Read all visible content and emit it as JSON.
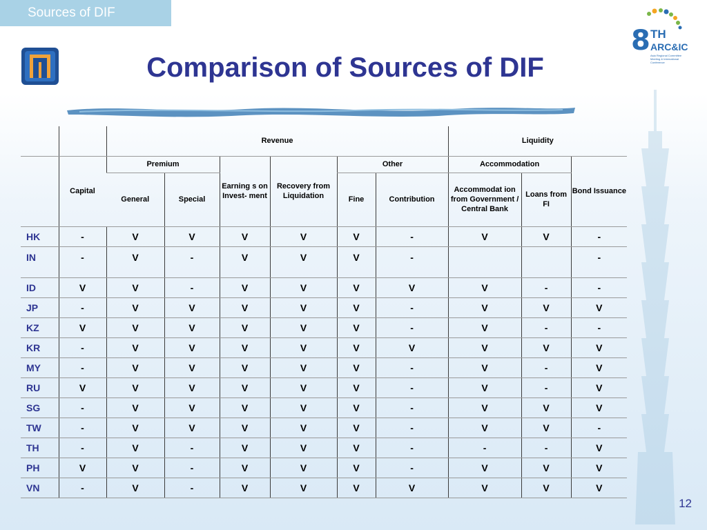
{
  "slide": {
    "tab_label": "Sources of DIF",
    "title": "Comparison of Sources of DIF",
    "page_number": "12",
    "logo_right": {
      "number": "8",
      "suffix": "TH",
      "name": "ARC&IC",
      "caption": "Asia Regional Committee Meeting & International Conference"
    }
  },
  "table": {
    "groups": {
      "revenue": "Revenue",
      "liquidity": "Liquidity"
    },
    "subgroups": {
      "premium": "Premium",
      "other": "Other",
      "accommodation": "Accommodation"
    },
    "columns": {
      "capital": "Capital",
      "general": "General",
      "special": "Special",
      "earnings": "Earning s on Invest- ment",
      "recovery": "Recovery from Liquidation",
      "fine": "Fine",
      "contribution": "Contribution",
      "accommodation_gov": "Accommodat ion from Government / Central Bank",
      "loans_fi": "Loans from FI",
      "bond": "Bond Issuance"
    },
    "rows": [
      {
        "country": "HK",
        "cells": [
          "-",
          "V",
          "V",
          "V",
          "V",
          "V",
          "-",
          "V",
          "V",
          "-"
        ]
      },
      {
        "country": "IN",
        "cells": [
          "-",
          "V",
          "-",
          "V",
          "V",
          "V",
          "-",
          "",
          "",
          "-"
        ]
      },
      {
        "country": "ID",
        "cells": [
          "V",
          "V",
          "-",
          "V",
          "V",
          "V",
          "V",
          "V",
          "-",
          "-"
        ]
      },
      {
        "country": "JP",
        "cells": [
          "-",
          "V",
          "V",
          "V",
          "V",
          "V",
          "-",
          "V",
          "V",
          "V"
        ]
      },
      {
        "country": "KZ",
        "cells": [
          "V",
          "V",
          "V",
          "V",
          "V",
          "V",
          "-",
          "V",
          "-",
          "-"
        ]
      },
      {
        "country": "KR",
        "cells": [
          "-",
          "V",
          "V",
          "V",
          "V",
          "V",
          "V",
          "V",
          "V",
          "V"
        ]
      },
      {
        "country": "MY",
        "cells": [
          "-",
          "V",
          "V",
          "V",
          "V",
          "V",
          "-",
          "V",
          "-",
          "V"
        ]
      },
      {
        "country": "RU",
        "cells": [
          "V",
          "V",
          "V",
          "V",
          "V",
          "V",
          "-",
          "V",
          "-",
          "V"
        ]
      },
      {
        "country": "SG",
        "cells": [
          "-",
          "V",
          "V",
          "V",
          "V",
          "V",
          "-",
          "V",
          "V",
          "V"
        ]
      },
      {
        "country": "TW",
        "cells": [
          "-",
          "V",
          "V",
          "V",
          "V",
          "V",
          "-",
          "V",
          "V",
          "-"
        ]
      },
      {
        "country": "TH",
        "cells": [
          "-",
          "V",
          "-",
          "V",
          "V",
          "V",
          "-",
          "-",
          "-",
          "V"
        ]
      },
      {
        "country": "PH",
        "cells": [
          "V",
          "V",
          "-",
          "V",
          "V",
          "V",
          "-",
          "V",
          "V",
          "V"
        ]
      },
      {
        "country": "VN",
        "cells": [
          "-",
          "V",
          "-",
          "V",
          "V",
          "V",
          "V",
          "V",
          "V",
          "V"
        ]
      }
    ]
  },
  "colors": {
    "title": "#2e3592",
    "country": "#2e3592",
    "tab_bg": "#a9d2e6",
    "logo_blue": "#2a6db3",
    "logo_left_orange": "#f0a23a"
  },
  "icons": [
    "pdic-logo-icon",
    "arcic-logo-icon",
    "brush-stroke-icon",
    "taipei-tower-icon"
  ]
}
